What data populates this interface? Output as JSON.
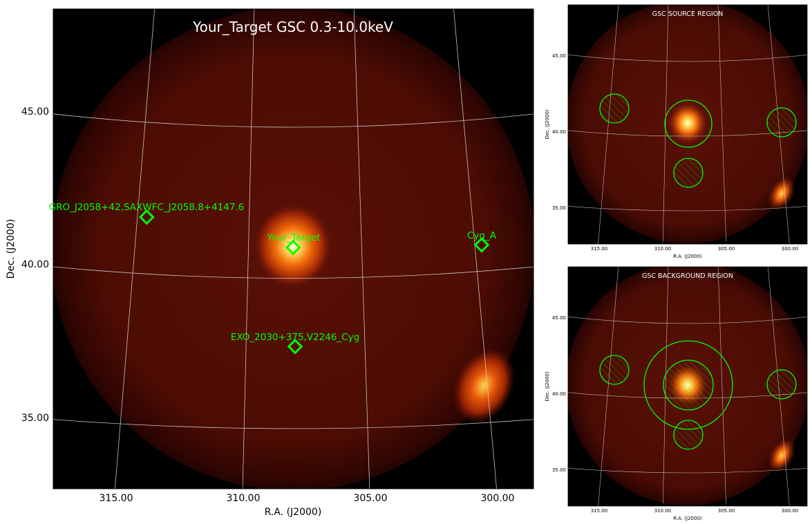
{
  "main": {
    "title": "Your_Target GSC 0.3-10.0keV",
    "xlabel": "R.A. (J2000)",
    "ylabel": "Dec. (J2000)",
    "xticks": [
      "315.00",
      "310.00",
      "305.00",
      "300.00"
    ],
    "yticks": [
      "45.00",
      "40.00",
      "35.00"
    ],
    "sources": [
      {
        "label": "GRO_J2058+42,SAXWFC_J2058.8+4147.6",
        "ra": 313.7,
        "dec": 41.6
      },
      {
        "label": "Your_Target",
        "ra": 308.0,
        "dec": 40.6
      },
      {
        "label": "Cyg_A",
        "ra": 300.7,
        "dec": 40.6
      },
      {
        "label": "EXO_2030+375,V2246_Cyg",
        "ra": 308.0,
        "dec": 37.3
      }
    ]
  },
  "source_panel": {
    "title": "GSC SOURCE REGION",
    "xlabel": "R.A. (J2000)",
    "ylabel": "Dec. (J2000)",
    "xticks": [
      "315.00",
      "310.00",
      "305.00",
      "300.00"
    ],
    "yticks": [
      "45.00",
      "40.00",
      "35.00"
    ]
  },
  "background_panel": {
    "title": "GSC BACKGROUND REGION",
    "xlabel": "R.A. (J2000)",
    "ylabel": "Dec. (J2000)",
    "xticks": [
      "315.00",
      "310.00",
      "305.00",
      "300.00"
    ],
    "yticks": [
      "45.00",
      "40.00",
      "35.00"
    ]
  },
  "colors": {
    "marker": "#00ff00",
    "background": "#000000",
    "grid": "#d8d8d8"
  }
}
